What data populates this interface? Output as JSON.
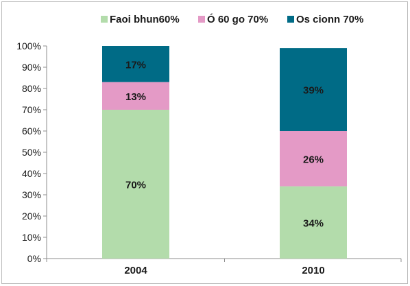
{
  "chart_data": {
    "type": "bar",
    "stacked": true,
    "categories": [
      "2004",
      "2010"
    ],
    "series": [
      {
        "name": "Faoi bhun60%",
        "values": [
          70,
          34
        ],
        "labels": [
          "70%",
          "34%"
        ],
        "color": "#b3dcab"
      },
      {
        "name": "Ó 60 go 70%",
        "values": [
          13,
          26
        ],
        "labels": [
          "13%",
          "26%"
        ],
        "color": "#e49ac6"
      },
      {
        "name": "Os cionn 70%",
        "values": [
          17,
          39
        ],
        "labels": [
          "17%",
          "39%"
        ],
        "color": "#006b86"
      }
    ],
    "ylim": [
      0,
      100
    ],
    "yticks": [
      "0%",
      "10%",
      "20%",
      "30%",
      "40%",
      "50%",
      "60%",
      "70%",
      "80%",
      "90%",
      "100%"
    ],
    "legend_position": "top",
    "grid": false
  }
}
